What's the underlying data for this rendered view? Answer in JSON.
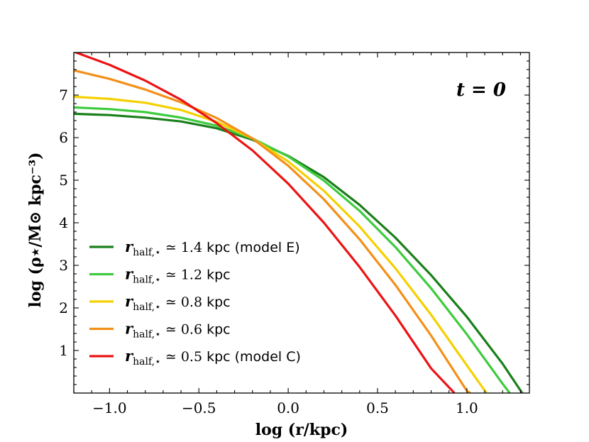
{
  "chart_data": {
    "type": "line",
    "annotation": "t = 0",
    "xlabel": "log (r/kpc)",
    "ylabel": "log (ρ⋆/M⊙ kpc⁻³)",
    "xlim": [
      -1.2,
      1.35
    ],
    "ylim": [
      0,
      8.0
    ],
    "x_ticks": [
      -1.0,
      -0.5,
      0.0,
      0.5,
      1.0
    ],
    "x_tick_labels": [
      "−1.0",
      "−0.5",
      "0.0",
      "0.5",
      "1.0"
    ],
    "y_ticks": [
      1,
      2,
      3,
      4,
      5,
      6,
      7
    ],
    "y_tick_labels": [
      "1",
      "2",
      "3",
      "4",
      "5",
      "6",
      "7"
    ],
    "legend_position": "lower-left",
    "series": [
      {
        "name": "r_half,⋆ ≃ 1.4 kpc (model E)",
        "legend_label": "rhalf,⋆ ≃ 1.4 kpc (model E)",
        "legend_math": "r",
        "legend_sub": "half,⋆",
        "legend_rel": " ≃ 1.4",
        "legend_rest": " kpc (model E)",
        "color": "#1a7f1a",
        "x": [
          -1.2,
          -1.0,
          -0.8,
          -0.6,
          -0.4,
          -0.2,
          0.0,
          0.2,
          0.4,
          0.6,
          0.8,
          1.0,
          1.2,
          1.31
        ],
        "y": [
          6.56,
          6.53,
          6.47,
          6.38,
          6.22,
          5.95,
          5.57,
          5.07,
          4.42,
          3.65,
          2.77,
          1.79,
          0.69,
          0.0
        ]
      },
      {
        "name": "r_half,⋆ ≃ 1.2 kpc",
        "legend_label": "rhalf,⋆ ≃ 1.2 kpc",
        "legend_math": "r",
        "legend_sub": "half,⋆",
        "legend_rel": " ≃ 1.2",
        "legend_rest": " kpc",
        "color": "#3ecb3e",
        "x": [
          -1.2,
          -1.0,
          -0.8,
          -0.6,
          -0.4,
          -0.2,
          0.0,
          0.2,
          0.4,
          0.6,
          0.8,
          1.0,
          1.2,
          1.24
        ],
        "y": [
          6.71,
          6.67,
          6.6,
          6.47,
          6.28,
          5.98,
          5.56,
          4.99,
          4.28,
          3.43,
          2.46,
          1.38,
          0.22,
          0.0
        ]
      },
      {
        "name": "r_half,⋆ ≃ 0.8 kpc",
        "legend_label": "rhalf,⋆ ≃ 0.8 kpc",
        "legend_math": "r",
        "legend_sub": "half,⋆",
        "legend_rel": " ≃ 0.8",
        "legend_rest": " kpc",
        "color": "#f5d000",
        "x": [
          -1.2,
          -1.0,
          -0.8,
          -0.6,
          -0.4,
          -0.2,
          0.0,
          0.2,
          0.4,
          0.6,
          0.8,
          1.0,
          1.11
        ],
        "y": [
          6.96,
          6.91,
          6.82,
          6.65,
          6.37,
          5.98,
          5.44,
          4.75,
          3.91,
          2.93,
          1.84,
          0.65,
          0.0
        ]
      },
      {
        "name": "r_half,⋆ ≃ 0.6 kpc",
        "legend_label": "rhalf,⋆ ≃ 0.6 kpc",
        "legend_math": "r",
        "legend_sub": "half,⋆",
        "legend_rel": " ≃ 0.6",
        "legend_rest": " kpc",
        "color": "#f39019",
        "x": [
          -1.2,
          -1.0,
          -0.8,
          -0.6,
          -0.4,
          -0.2,
          0.0,
          0.2,
          0.4,
          0.6,
          0.8,
          1.0,
          1.02
        ],
        "y": [
          7.58,
          7.38,
          7.13,
          6.83,
          6.46,
          5.98,
          5.34,
          4.55,
          3.61,
          2.54,
          1.35,
          0.05,
          0.0
        ]
      },
      {
        "name": "r_half,⋆ ≃ 0.5 kpc (model C)",
        "legend_label": "rhalf,⋆ ≃ 0.5 kpc (model C)",
        "legend_math": "r",
        "legend_sub": "half,⋆",
        "legend_rel": " ≃ 0.5",
        "legend_rest": " kpc (model C)",
        "color": "#ec1313",
        "x": [
          -1.2,
          -1.0,
          -0.8,
          -0.6,
          -0.4,
          -0.2,
          0.0,
          0.2,
          0.4,
          0.6,
          0.8,
          0.93
        ],
        "y": [
          8.02,
          7.71,
          7.34,
          6.89,
          6.34,
          5.7,
          4.92,
          4.0,
          2.96,
          1.82,
          0.58,
          0.0
        ]
      }
    ]
  }
}
